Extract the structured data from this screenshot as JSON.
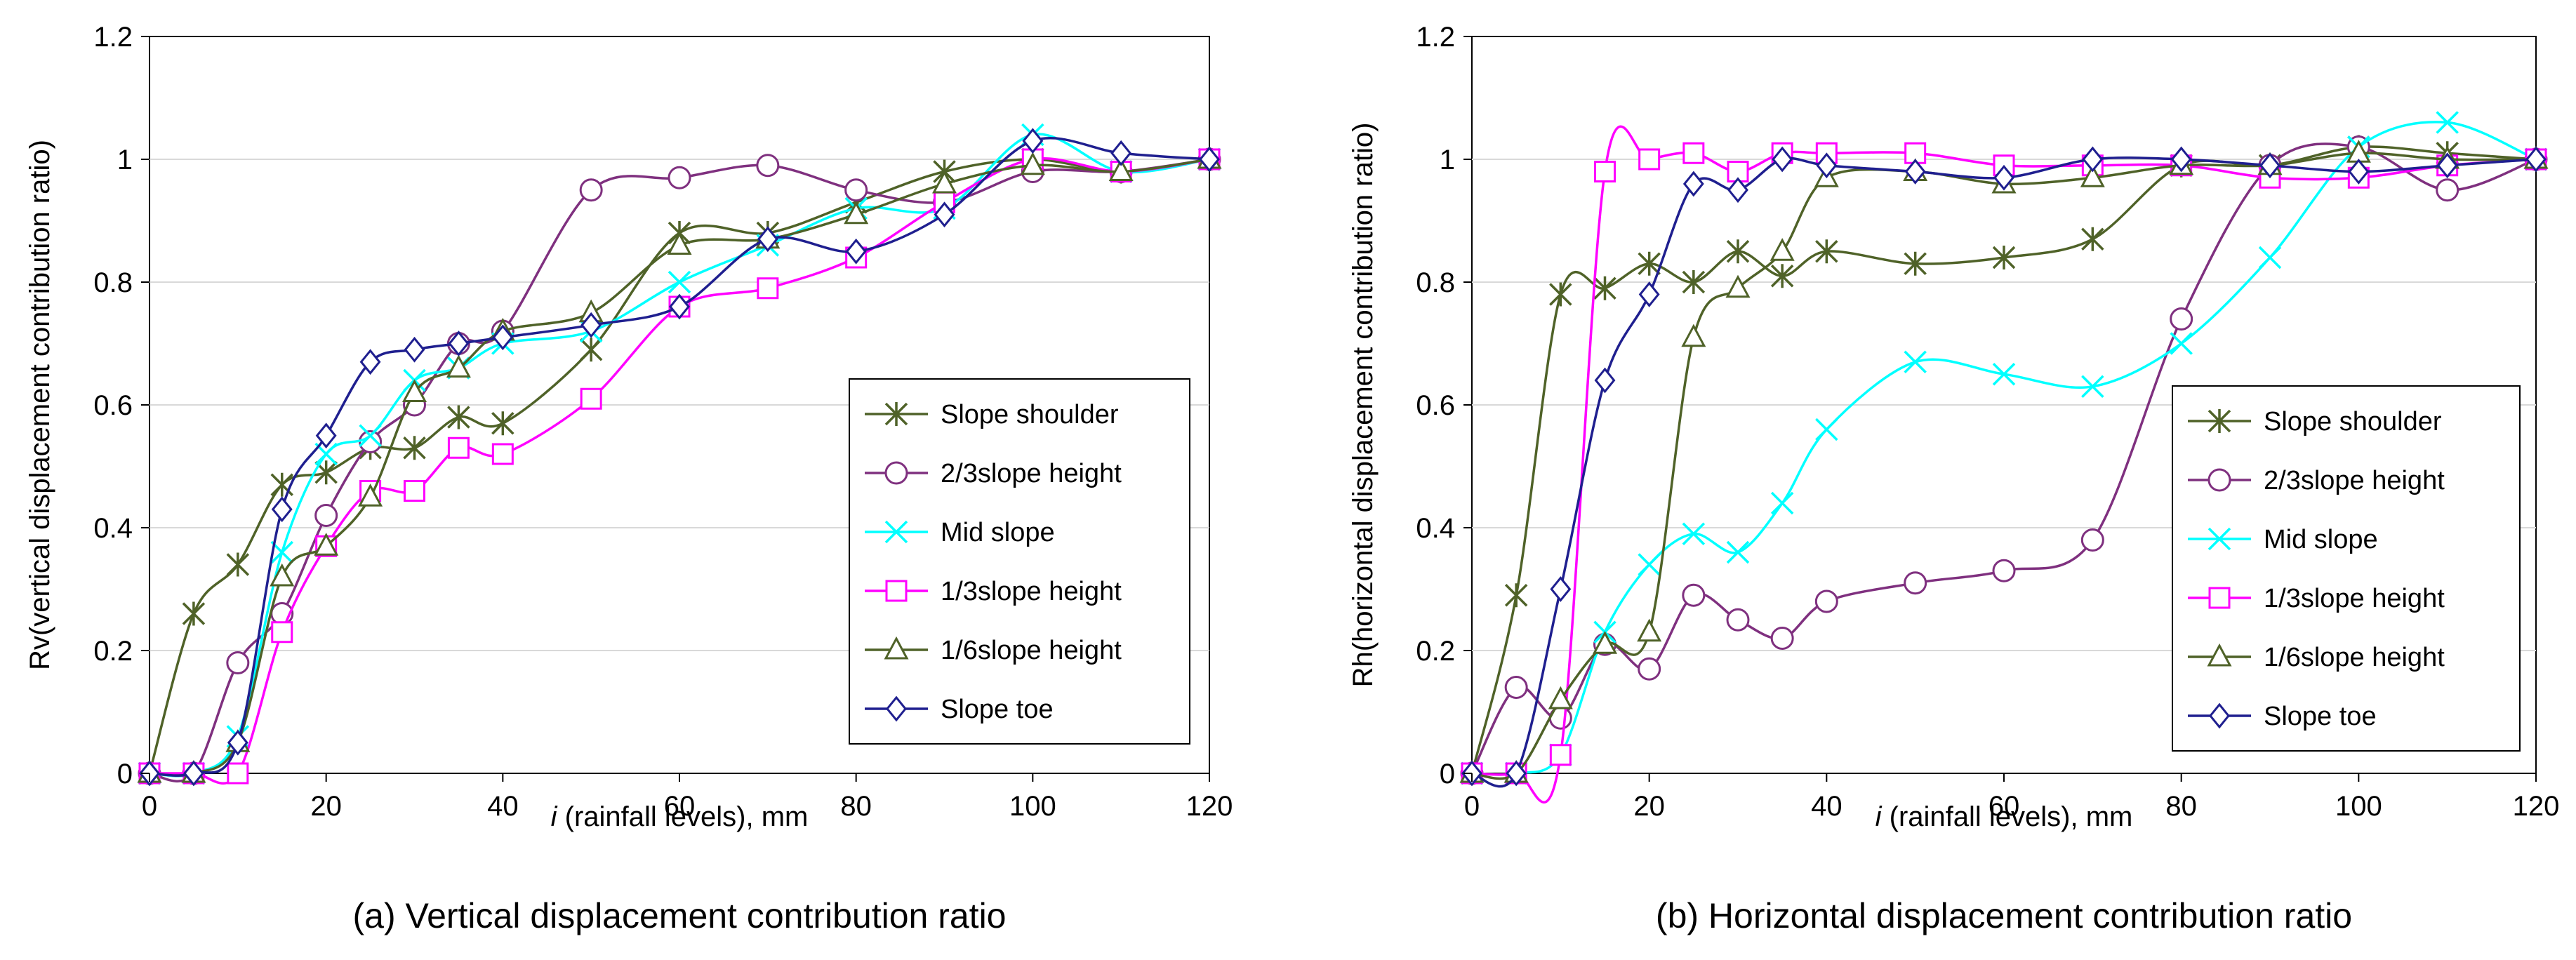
{
  "chart_data": [
    {
      "type": "line",
      "caption": "(a) Vertical displacement contribution ratio",
      "xlabel_italic": "i",
      "xlabel_rest": " (rainfall levels), mm",
      "ylabel": "Rv(vertical displacement contribution ratio)",
      "xlim": [
        0,
        120
      ],
      "ylim": [
        0,
        1.2
      ],
      "xticks": [
        0,
        20,
        40,
        60,
        80,
        100,
        120
      ],
      "yticks": [
        0,
        0.2,
        0.4,
        0.6,
        0.8,
        1,
        1.2
      ],
      "ytick_labels": [
        "0",
        "0.2",
        "0.4",
        "0.6",
        "0.8",
        "1",
        "1.2"
      ],
      "legend_position": "lower-right",
      "series": [
        {
          "name": "Slope shoulder",
          "color": "#4F6228",
          "marker": "star",
          "x": [
            0,
            5,
            10,
            15,
            20,
            25,
            30,
            35,
            40,
            50,
            60,
            70,
            80,
            90,
            100,
            110,
            120
          ],
          "y": [
            0,
            0.26,
            0.34,
            0.47,
            0.49,
            0.53,
            0.53,
            0.58,
            0.57,
            0.69,
            0.88,
            0.88,
            0.93,
            0.98,
            1.0,
            0.98,
            1.0
          ]
        },
        {
          "name": "2/3slope height",
          "color": "#7F307F",
          "marker": "circle",
          "x": [
            0,
            5,
            10,
            15,
            20,
            25,
            30,
            35,
            40,
            50,
            60,
            70,
            80,
            90,
            100,
            110,
            120
          ],
          "y": [
            0,
            0,
            0.18,
            0.26,
            0.42,
            0.54,
            0.6,
            0.7,
            0.72,
            0.95,
            0.97,
            0.99,
            0.95,
            0.93,
            0.98,
            0.98,
            1.0
          ]
        },
        {
          "name": "Mid slope",
          "color": "#00FFFF",
          "marker": "x",
          "x": [
            0,
            5,
            10,
            15,
            20,
            25,
            30,
            35,
            40,
            50,
            60,
            70,
            80,
            90,
            100,
            110,
            120
          ],
          "y": [
            0,
            0,
            0.06,
            0.36,
            0.52,
            0.55,
            0.64,
            0.66,
            0.7,
            0.72,
            0.8,
            0.86,
            0.92,
            0.92,
            1.04,
            0.98,
            1.0
          ]
        },
        {
          "name": "1/3slope height",
          "color": "#FF00FF",
          "marker": "square",
          "x": [
            0,
            5,
            10,
            15,
            20,
            25,
            30,
            35,
            40,
            50,
            60,
            70,
            80,
            90,
            100,
            110,
            120
          ],
          "y": [
            0,
            0,
            0,
            0.23,
            0.37,
            0.46,
            0.46,
            0.53,
            0.52,
            0.61,
            0.76,
            0.79,
            0.84,
            0.93,
            1.0,
            0.98,
            1.0
          ]
        },
        {
          "name": "1/6slope height",
          "color": "#4F6228",
          "marker": "triangle",
          "x": [
            0,
            5,
            10,
            15,
            20,
            25,
            30,
            35,
            40,
            50,
            60,
            70,
            80,
            90,
            100,
            110,
            120
          ],
          "y": [
            0,
            0,
            0.05,
            0.32,
            0.37,
            0.45,
            0.62,
            0.66,
            0.72,
            0.75,
            0.86,
            0.87,
            0.91,
            0.96,
            0.99,
            0.98,
            1.0
          ]
        },
        {
          "name": "Slope toe",
          "color": "#1F1F8F",
          "marker": "diamond",
          "x": [
            0,
            5,
            10,
            15,
            20,
            25,
            30,
            35,
            40,
            50,
            60,
            70,
            80,
            90,
            100,
            110,
            120
          ],
          "y": [
            0,
            0,
            0.05,
            0.43,
            0.55,
            0.67,
            0.69,
            0.7,
            0.71,
            0.73,
            0.76,
            0.87,
            0.85,
            0.91,
            1.03,
            1.01,
            1.0
          ]
        }
      ]
    },
    {
      "type": "line",
      "caption": "(b) Horizontal displacement contribution ratio",
      "xlabel_italic": "i",
      "xlabel_rest": " (rainfall levels), mm",
      "ylabel": "Rh(horizontal displacement contribution ratio)",
      "xlim": [
        0,
        120
      ],
      "ylim": [
        0,
        1.2
      ],
      "xticks": [
        0,
        20,
        40,
        60,
        80,
        100,
        120
      ],
      "yticks": [
        0,
        0.2,
        0.4,
        0.6,
        0.8,
        1,
        1.2
      ],
      "ytick_labels": [
        "0",
        "0.2",
        "0.4",
        "0.6",
        "0.8",
        "1",
        "1.2"
      ],
      "legend_position": "lower-right",
      "series": [
        {
          "name": "Slope shoulder",
          "color": "#4F6228",
          "marker": "star",
          "x": [
            0,
            5,
            10,
            15,
            20,
            25,
            30,
            35,
            40,
            50,
            60,
            70,
            80,
            90,
            100,
            110,
            120
          ],
          "y": [
            0,
            0.29,
            0.78,
            0.79,
            0.83,
            0.8,
            0.85,
            0.81,
            0.85,
            0.83,
            0.84,
            0.87,
            0.99,
            0.99,
            1.02,
            1.01,
            1.0
          ]
        },
        {
          "name": "2/3slope height",
          "color": "#7F307F",
          "marker": "circle",
          "x": [
            0,
            5,
            10,
            15,
            20,
            25,
            30,
            35,
            40,
            50,
            60,
            70,
            80,
            90,
            100,
            110,
            120
          ],
          "y": [
            0,
            0.14,
            0.09,
            0.21,
            0.17,
            0.29,
            0.25,
            0.22,
            0.28,
            0.31,
            0.33,
            0.38,
            0.74,
            0.99,
            1.02,
            0.95,
            1.0
          ]
        },
        {
          "name": "Mid slope",
          "color": "#00FFFF",
          "marker": "x",
          "x": [
            0,
            5,
            10,
            15,
            20,
            25,
            30,
            35,
            40,
            50,
            60,
            70,
            80,
            90,
            100,
            110,
            120
          ],
          "y": [
            0,
            0,
            0.03,
            0.23,
            0.34,
            0.39,
            0.36,
            0.44,
            0.56,
            0.67,
            0.65,
            0.63,
            0.7,
            0.84,
            1.02,
            1.06,
            1.0
          ]
        },
        {
          "name": "1/3slope height",
          "color": "#FF00FF",
          "marker": "square",
          "x": [
            0,
            5,
            10,
            15,
            20,
            25,
            30,
            35,
            40,
            50,
            60,
            70,
            80,
            90,
            100,
            110,
            120
          ],
          "y": [
            0,
            0,
            0.03,
            0.98,
            1.0,
            1.01,
            0.98,
            1.01,
            1.01,
            1.01,
            0.99,
            0.99,
            0.99,
            0.97,
            0.97,
            0.99,
            1.0
          ]
        },
        {
          "name": "1/6slope height",
          "color": "#4F6228",
          "marker": "triangle",
          "x": [
            0,
            5,
            10,
            15,
            20,
            25,
            30,
            35,
            40,
            50,
            60,
            70,
            80,
            90,
            100,
            110,
            120
          ],
          "y": [
            0,
            0,
            0.12,
            0.21,
            0.23,
            0.71,
            0.79,
            0.85,
            0.97,
            0.98,
            0.96,
            0.97,
            0.99,
            0.99,
            1.01,
            1.0,
            1.0
          ]
        },
        {
          "name": "Slope toe",
          "color": "#1F1F8F",
          "marker": "diamond",
          "x": [
            0,
            5,
            10,
            15,
            20,
            25,
            30,
            35,
            40,
            50,
            60,
            70,
            80,
            90,
            100,
            110,
            120
          ],
          "y": [
            0,
            0,
            0.3,
            0.64,
            0.78,
            0.96,
            0.95,
            1.0,
            0.99,
            0.98,
            0.97,
            1.0,
            1.0,
            0.99,
            0.98,
            0.99,
            1.0
          ]
        }
      ]
    }
  ]
}
